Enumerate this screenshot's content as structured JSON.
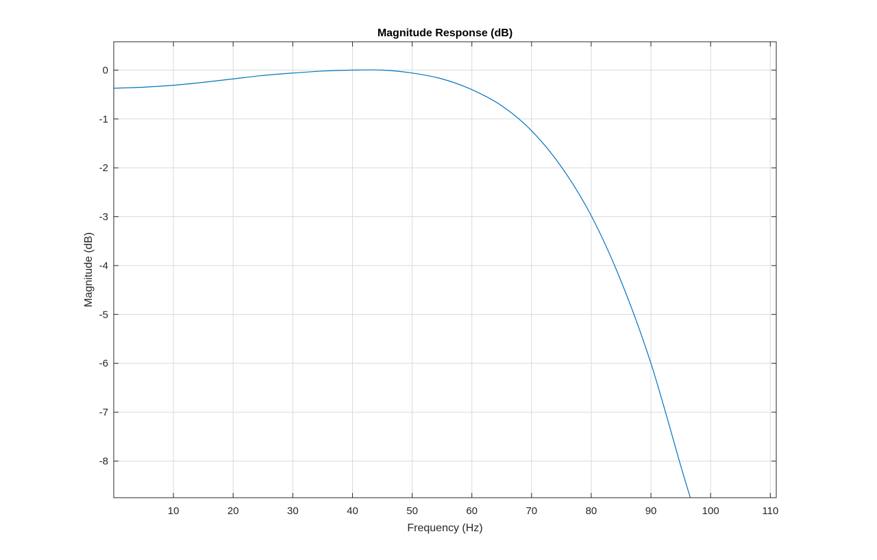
{
  "chart_data": {
    "type": "line",
    "title": "Magnitude Response (dB)",
    "xlabel": "Frequency (Hz)",
    "ylabel": "Magnitude (dB)",
    "xlim": [
      0,
      111
    ],
    "ylim": [
      -8.75,
      0.58
    ],
    "xticks": [
      10,
      20,
      30,
      40,
      50,
      60,
      70,
      80,
      90,
      100,
      110
    ],
    "xtick_labels": [
      "10",
      "20",
      "30",
      "40",
      "50",
      "60",
      "70",
      "80",
      "90",
      "100",
      "110"
    ],
    "yticks": [
      0,
      -1,
      -2,
      -3,
      -4,
      -5,
      -6,
      -7,
      -8
    ],
    "ytick_labels": [
      "0",
      "-1",
      "-2",
      "-3",
      "-4",
      "-5",
      "-6",
      "-7",
      "-8"
    ],
    "grid": true,
    "series": [
      {
        "color": "#0072BD",
        "x": [
          0,
          5,
          10,
          15,
          20,
          25,
          30,
          35,
          40,
          45,
          50,
          55,
          60,
          65,
          70,
          75,
          80,
          85,
          90,
          95,
          96.6
        ],
        "y": [
          -0.37,
          -0.35,
          -0.31,
          -0.25,
          -0.18,
          -0.11,
          -0.06,
          -0.02,
          0.0,
          0.0,
          -0.06,
          -0.18,
          -0.4,
          -0.73,
          -1.24,
          -1.98,
          -2.98,
          -4.32,
          -6.0,
          -8.1,
          -8.75
        ]
      }
    ]
  },
  "colors": {
    "line": "#0072BD",
    "grid": "#dadada",
    "axis": "#262626",
    "background": "#ffffff"
  }
}
